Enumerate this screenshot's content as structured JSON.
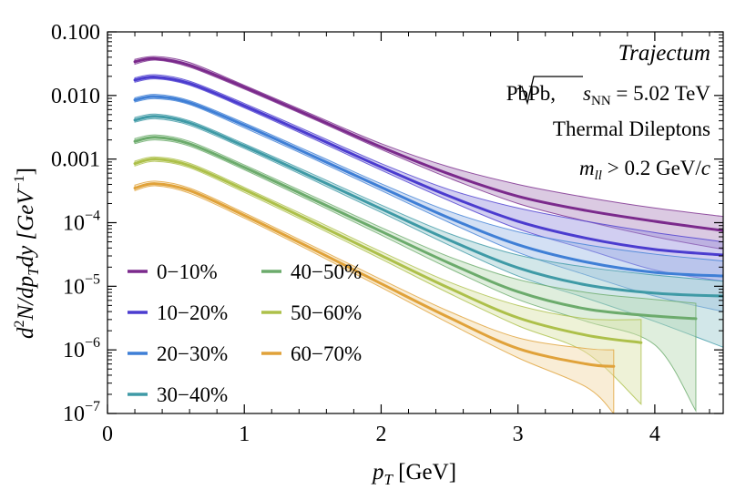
{
  "chart_data": {
    "type": "line",
    "x_scale": "linear",
    "y_scale": "log",
    "xlim": [
      0,
      4.5
    ],
    "ylim": [
      1e-07,
      0.1
    ],
    "x_ticks": [
      0,
      1,
      2,
      3,
      4
    ],
    "x_tick_labels": [
      "0",
      "1",
      "2",
      "3",
      "4"
    ],
    "y_ticks": [
      1e-07,
      1e-06,
      1e-05,
      0.0001,
      0.001,
      0.01,
      0.1
    ],
    "y_tick_labels": [
      {
        "text": "10",
        "sup": "−7"
      },
      {
        "text": "10",
        "sup": "−6"
      },
      {
        "text": "10",
        "sup": "−5"
      },
      {
        "text": "10",
        "sup": "−4"
      },
      {
        "text": "0.001",
        "sup": ""
      },
      {
        "text": "0.010",
        "sup": ""
      },
      {
        "text": "0.100",
        "sup": ""
      }
    ],
    "xlabel": {
      "main": "p",
      "sub": "T",
      "unit": " [GeV]"
    },
    "ylabel": {
      "d2": "d",
      "sup": "2",
      "rest": "N/dp",
      "sub": "T",
      "rest2": "dy [GeV",
      "sup2": "−1",
      "close": "]"
    },
    "annotations": {
      "name": "Trajectum",
      "system": "PbPb,",
      "sqrt_s": "s",
      "sqrt_s_sub": "NN",
      "energy": " = 5.02 TeV",
      "process": "Thermal Dileptons",
      "cut_var": "m",
      "cut_sub": "ll",
      "cut_val": " > 0.2 GeV/",
      "cut_c": "c"
    },
    "legend_position": "bottom-left",
    "series": [
      {
        "name": "0−10%",
        "color": "#7b2a8c",
        "fill": "#b08abf",
        "x": [
          0.2,
          0.35,
          0.6,
          1.0,
          1.5,
          2.0,
          2.5,
          3.0,
          3.5,
          4.0,
          4.5
        ],
        "y": [
          0.034,
          0.038,
          0.03,
          0.0135,
          0.0046,
          0.00155,
          0.00058,
          0.00026,
          0.000155,
          0.000105,
          7.5e-05
        ],
        "upper": [
          0.037,
          0.041,
          0.033,
          0.0145,
          0.005,
          0.00175,
          0.00075,
          0.0004,
          0.00025,
          0.00017,
          0.000125
        ],
        "lower": [
          0.031,
          0.036,
          0.028,
          0.0126,
          0.0043,
          0.00142,
          0.0005,
          0.0002,
          0.000105,
          6e-05,
          3.8e-05
        ]
      },
      {
        "name": "10−20%",
        "color": "#4b3ccf",
        "fill": "#9a93e0",
        "x": [
          0.2,
          0.35,
          0.6,
          1.0,
          1.5,
          2.0,
          2.5,
          3.0,
          3.5,
          4.0,
          4.5
        ],
        "y": [
          0.0175,
          0.0195,
          0.0155,
          0.0069,
          0.0023,
          0.00075,
          0.00026,
          0.000105,
          5.7e-05,
          3.8e-05,
          3.1e-05
        ],
        "upper": [
          0.019,
          0.0212,
          0.0168,
          0.0075,
          0.00255,
          0.00085,
          0.00033,
          0.00017,
          0.000105,
          7e-05,
          5e-05
        ],
        "lower": [
          0.0162,
          0.0182,
          0.0145,
          0.0064,
          0.0021,
          0.00067,
          0.00022,
          8e-05,
          3.8e-05,
          1.8e-05,
          1.2e-05
        ]
      },
      {
        "name": "20−30%",
        "color": "#3f7fd6",
        "fill": "#9dbbe6",
        "x": [
          0.2,
          0.35,
          0.6,
          1.0,
          1.5,
          2.0,
          2.5,
          3.0,
          3.5,
          4.0,
          4.5
        ],
        "y": [
          0.0085,
          0.0096,
          0.0077,
          0.0034,
          0.00112,
          0.00036,
          0.000118,
          4.5e-05,
          2.4e-05,
          1.65e-05,
          1.45e-05
        ],
        "upper": [
          0.0092,
          0.0104,
          0.0083,
          0.0037,
          0.00124,
          0.00041,
          0.00015,
          7.2e-05,
          4.5e-05,
          3.2e-05,
          2.5e-05
        ],
        "lower": [
          0.0079,
          0.0089,
          0.0072,
          0.0031,
          0.00102,
          0.00032,
          0.0001,
          3.4e-05,
          1.5e-05,
          7e-06,
          4e-06
        ]
      },
      {
        "name": "30−40%",
        "color": "#3f9aa6",
        "fill": "#9bc9cf",
        "x": [
          0.2,
          0.35,
          0.6,
          1.0,
          1.5,
          2.0,
          2.5,
          3.0,
          3.5,
          4.0,
          4.5
        ],
        "y": [
          0.0041,
          0.0047,
          0.0037,
          0.0016,
          0.00052,
          0.000165,
          5.3e-05,
          1.95e-05,
          1.05e-05,
          7.8e-06,
          7e-06
        ],
        "upper": [
          0.0045,
          0.0051,
          0.004,
          0.00174,
          0.00058,
          0.00019,
          6.7e-05,
          3.1e-05,
          2e-05,
          1.5e-05,
          1.2e-05
        ],
        "lower": [
          0.0038,
          0.0043,
          0.0034,
          0.00147,
          0.00047,
          0.000145,
          4.4e-05,
          1.45e-05,
          6.5e-06,
          2.8e-06,
          1.1e-06
        ]
      },
      {
        "name": "40−50%",
        "color": "#6cab6c",
        "fill": "#b7d9b4",
        "x": [
          0.2,
          0.35,
          0.6,
          1.0,
          1.5,
          2.0,
          2.5,
          3.0,
          3.5,
          4.0,
          4.3
        ],
        "y": [
          0.0019,
          0.0022,
          0.00174,
          0.00074,
          0.000235,
          7.3e-05,
          2.3e-05,
          8.2e-06,
          4.4e-06,
          3.4e-06,
          3.1e-06
        ],
        "upper": [
          0.0021,
          0.0024,
          0.0019,
          0.00081,
          0.000262,
          8.4e-05,
          2.9e-05,
          1.28e-05,
          8e-06,
          6.2e-06,
          5.4e-06
        ],
        "lower": [
          0.00175,
          0.002,
          0.0016,
          0.00068,
          0.000212,
          6.4e-05,
          1.9e-05,
          6.2e-06,
          2.8e-06,
          1.2e-06,
          1.1e-07
        ]
      },
      {
        "name": "50−60%",
        "color": "#adc04a",
        "fill": "#d9e3a6",
        "x": [
          0.2,
          0.35,
          0.6,
          1.0,
          1.5,
          2.0,
          2.5,
          3.0,
          3.5,
          3.9
        ],
        "y": [
          0.00085,
          0.001,
          0.00079,
          0.00033,
          0.000102,
          3.05e-05,
          9.3e-06,
          3.2e-06,
          1.7e-06,
          1.3e-06
        ],
        "upper": [
          0.00093,
          0.00108,
          0.00086,
          0.00036,
          0.000114,
          3.5e-05,
          1.16e-05,
          5e-06,
          3.1e-06,
          3e-06
        ],
        "lower": [
          0.00078,
          0.00092,
          0.00073,
          0.0003,
          9.2e-05,
          2.68e-05,
          7.7e-06,
          2.4e-06,
          9e-07,
          1.4e-07
        ]
      },
      {
        "name": "60−70%",
        "color": "#e0a23a",
        "fill": "#f1d6a4",
        "x": [
          0.2,
          0.35,
          0.6,
          1.0,
          1.5,
          2.0,
          2.5,
          3.0,
          3.5,
          3.7
        ],
        "y": [
          0.00035,
          0.00041,
          0.00032,
          0.00013,
          3.85e-05,
          1.1e-05,
          3.2e-06,
          1.05e-06,
          6e-07,
          5.5e-07
        ],
        "upper": [
          0.00039,
          0.00045,
          0.00035,
          0.000143,
          4.3e-05,
          1.28e-05,
          4e-06,
          1.55e-06,
          1.05e-06,
          1e-06
        ],
        "lower": [
          0.00032,
          0.00038,
          0.00029,
          0.000118,
          3.45e-05,
          9.6e-06,
          2.6e-06,
          7.5e-07,
          2.6e-07,
          1e-07
        ]
      }
    ]
  }
}
